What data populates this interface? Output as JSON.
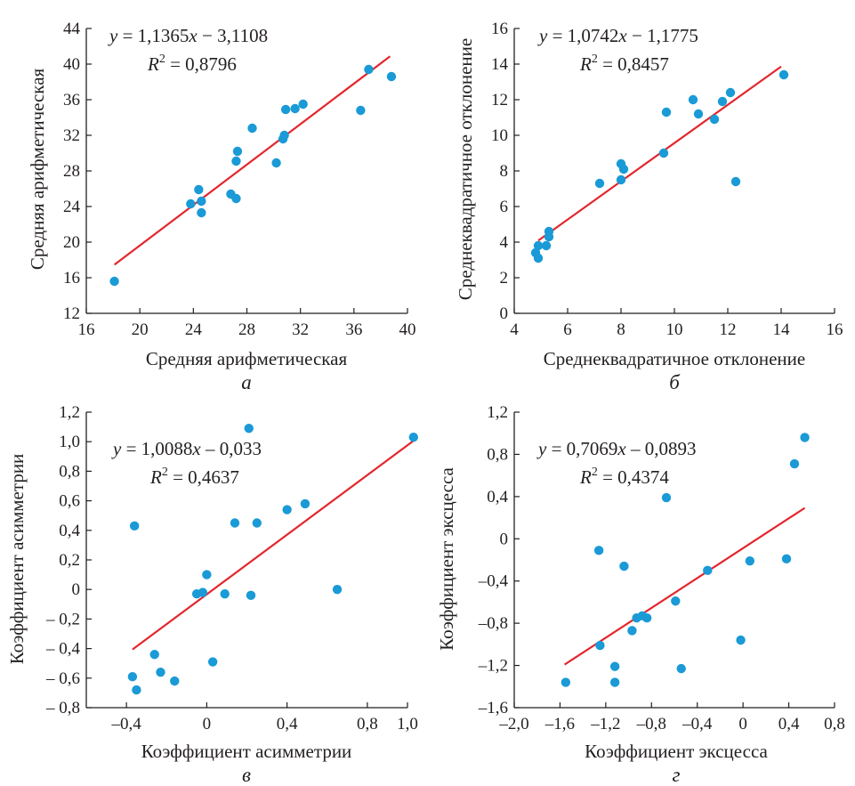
{
  "chart_data": [
    {
      "type": "scatter",
      "panel_label": "а",
      "xlabel": "Средняя арифметическая",
      "ylabel": "Средняя арифметическая",
      "xlim": [
        16,
        40
      ],
      "ylim": [
        12,
        44
      ],
      "xticks": [
        16,
        20,
        24,
        28,
        32,
        36,
        40
      ],
      "yticks": [
        12,
        16,
        20,
        24,
        28,
        32,
        36,
        40,
        44
      ],
      "xtick_labels": [
        "16",
        "20",
        "24",
        "28",
        "32",
        "36",
        "40"
      ],
      "ytick_labels": [
        "12",
        "16",
        "20",
        "24",
        "28",
        "32",
        "36",
        "40",
        "44"
      ],
      "equation": {
        "y": "y",
        "eq": " = 1,1365",
        "x": "x",
        "rest": " − 3,1108"
      },
      "r2": {
        "r": "R",
        "sup": "2",
        "val": " = 0,8796"
      },
      "trendline": {
        "slope": 1.1365,
        "intercept": -3.1108,
        "x_range": [
          18.1,
          38.7
        ]
      },
      "point_color": "#1a9ad6",
      "line_color": "#e3262d",
      "points": [
        [
          18.1,
          15.6
        ],
        [
          23.8,
          24.3
        ],
        [
          24.4,
          25.9
        ],
        [
          24.6,
          24.6
        ],
        [
          24.6,
          23.3
        ],
        [
          26.8,
          25.4
        ],
        [
          27.2,
          24.9
        ],
        [
          27.2,
          29.1
        ],
        [
          27.3,
          30.2
        ],
        [
          28.4,
          32.8
        ],
        [
          30.2,
          28.9
        ],
        [
          30.7,
          31.6
        ],
        [
          30.8,
          32.0
        ],
        [
          30.9,
          34.9
        ],
        [
          31.6,
          35.0
        ],
        [
          32.2,
          35.5
        ],
        [
          36.5,
          34.8
        ],
        [
          37.1,
          39.4
        ],
        [
          38.8,
          38.6
        ]
      ]
    },
    {
      "type": "scatter",
      "panel_label": "б",
      "xlabel": "Среднеквадратичное отклонение",
      "ylabel": "Среднеквадратичное отклонение",
      "xlim": [
        4,
        16
      ],
      "ylim": [
        0,
        16
      ],
      "xticks": [
        4,
        6,
        8,
        10,
        12,
        14,
        16
      ],
      "yticks": [
        0,
        2,
        4,
        6,
        8,
        10,
        12,
        14,
        16
      ],
      "xtick_labels": [
        "4",
        "6",
        "8",
        "10",
        "12",
        "14",
        "16"
      ],
      "ytick_labels": [
        "0",
        "2",
        "4",
        "6",
        "8",
        "10",
        "12",
        "14",
        "16"
      ],
      "equation": {
        "y": "y",
        "eq": " = 1,0742",
        "x": "x",
        "rest": " − 1,1775"
      },
      "r2": {
        "r": "R",
        "sup": "2",
        "val": " = 0,8457"
      },
      "trendline": {
        "slope": 1.0742,
        "intercept": -1.1775,
        "x_range": [
          4.9,
          14.0
        ]
      },
      "point_color": "#1a9ad6",
      "line_color": "#e3262d",
      "points": [
        [
          4.8,
          3.4
        ],
        [
          4.9,
          3.8
        ],
        [
          4.9,
          3.1
        ],
        [
          5.2,
          3.8
        ],
        [
          5.3,
          4.3
        ],
        [
          5.3,
          4.6
        ],
        [
          7.2,
          7.3
        ],
        [
          8.0,
          8.4
        ],
        [
          8.0,
          7.5
        ],
        [
          8.1,
          8.1
        ],
        [
          9.6,
          9.0
        ],
        [
          9.7,
          11.3
        ],
        [
          10.7,
          12.0
        ],
        [
          10.9,
          11.2
        ],
        [
          11.5,
          10.9
        ],
        [
          11.8,
          11.9
        ],
        [
          12.1,
          12.4
        ],
        [
          12.3,
          7.4
        ],
        [
          14.1,
          13.4
        ]
      ]
    },
    {
      "type": "scatter",
      "panel_label": "в",
      "xlabel": "Коэффициент асимметрии",
      "ylabel": "Коэффициент асимметрии",
      "xlim": [
        -0.6,
        1.0
      ],
      "ylim": [
        -0.8,
        1.2
      ],
      "xticks": [
        -0.4,
        0,
        0.4,
        0.8,
        1.0
      ],
      "yticks": [
        -0.8,
        -0.6,
        -0.4,
        -0.2,
        0,
        0.2,
        0.4,
        0.6,
        0.8,
        1.0,
        1.2
      ],
      "xtick_labels": [
        "–0,4",
        "0",
        "0,4",
        "0,8",
        "1,0"
      ],
      "ytick_labels": [
        "– 0,8",
        "– 0,6",
        "– 0,4",
        "– 0,2",
        "0",
        "0,2",
        "0,4",
        "0,6",
        "0,8",
        "1,0",
        "1,2"
      ],
      "equation": {
        "y": "y",
        "eq": " = 1,0088",
        "x": "x",
        "rest": " – 0,033"
      },
      "r2": {
        "r": "R",
        "sup": "2",
        "val": " = 0,4637"
      },
      "trendline": {
        "slope": 1.0088,
        "intercept": -0.033,
        "x_range": [
          -0.37,
          1.04
        ]
      },
      "point_color": "#1a9ad6",
      "line_color": "#e3262d",
      "points": [
        [
          -0.37,
          -0.59
        ],
        [
          -0.36,
          0.43
        ],
        [
          -0.35,
          -0.68
        ],
        [
          -0.26,
          -0.44
        ],
        [
          -0.23,
          -0.56
        ],
        [
          -0.16,
          -0.62
        ],
        [
          -0.05,
          -0.03
        ],
        [
          -0.02,
          -0.02
        ],
        [
          0.0,
          0.1
        ],
        [
          0.03,
          -0.49
        ],
        [
          0.09,
          -0.03
        ],
        [
          0.14,
          0.45
        ],
        [
          0.21,
          1.09
        ],
        [
          0.22,
          -0.04
        ],
        [
          0.25,
          0.45
        ],
        [
          0.4,
          0.54
        ],
        [
          0.49,
          0.58
        ],
        [
          0.65,
          0.0
        ],
        [
          1.03,
          1.03
        ]
      ]
    },
    {
      "type": "scatter",
      "panel_label": "г",
      "xlabel": "Коэффициент эксцесса",
      "ylabel": "Коэффициент эксцесса",
      "xlim": [
        -2.0,
        0.8
      ],
      "ylim": [
        -1.6,
        1.2
      ],
      "xticks": [
        -2.0,
        -1.6,
        -1.2,
        -0.8,
        -0.4,
        0,
        0.4,
        0.8
      ],
      "yticks": [
        -1.6,
        -1.2,
        -0.8,
        -0.4,
        0,
        0.4,
        0.8,
        1.2
      ],
      "xtick_labels": [
        "–2,0",
        "–1,6",
        "–1,2",
        "–0,8",
        "–0,4",
        "0",
        "0,4",
        "0,8"
      ],
      "ytick_labels": [
        "–1,6",
        "–1,2",
        "–0,8",
        "–0,4",
        "0",
        "0,4",
        "0,8",
        "1,2"
      ],
      "equation": {
        "y": "y",
        "eq": " = 0,7069",
        "x": "x",
        "rest": " – 0,0893"
      },
      "r2": {
        "r": "R",
        "sup": "2",
        "val": " = 0,4374"
      },
      "trendline": {
        "slope": 0.7069,
        "intercept": -0.0893,
        "x_range": [
          -1.56,
          0.54
        ]
      },
      "point_color": "#1a9ad6",
      "line_color": "#e3262d",
      "points": [
        [
          -1.55,
          -1.36
        ],
        [
          -1.26,
          -0.11
        ],
        [
          -1.25,
          -1.01
        ],
        [
          -1.12,
          -1.21
        ],
        [
          -1.12,
          -1.36
        ],
        [
          -1.04,
          -0.26
        ],
        [
          -0.97,
          -0.87
        ],
        [
          -0.93,
          -0.75
        ],
        [
          -0.88,
          -0.73
        ],
        [
          -0.84,
          -0.75
        ],
        [
          -0.67,
          0.39
        ],
        [
          -0.59,
          -0.59
        ],
        [
          -0.54,
          -1.23
        ],
        [
          -0.31,
          -0.3
        ],
        [
          -0.02,
          -0.96
        ],
        [
          0.06,
          -0.21
        ],
        [
          0.38,
          -0.19
        ],
        [
          0.45,
          0.71
        ],
        [
          0.54,
          0.96
        ]
      ]
    }
  ]
}
